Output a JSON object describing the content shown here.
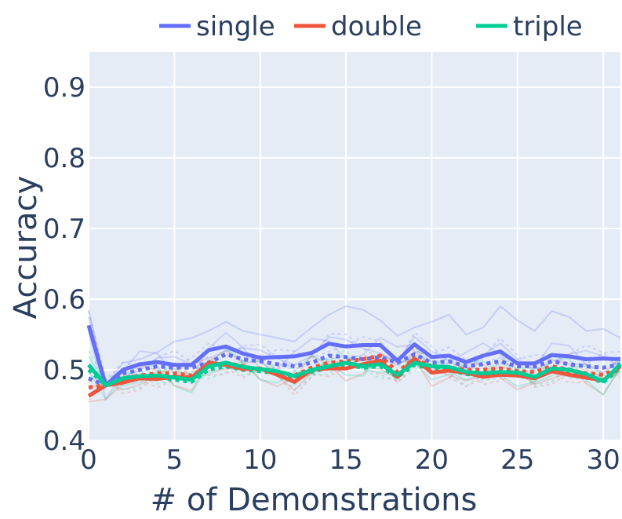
{
  "chart_data": {
    "type": "line",
    "xlabel": "# of Demonstrations",
    "ylabel": "Accuracy",
    "xlim": [
      0,
      31
    ],
    "ylim": [
      0.4,
      0.95
    ],
    "xticks": [
      0,
      5,
      10,
      15,
      20,
      25,
      30
    ],
    "yticks": [
      0.4,
      0.5,
      0.6,
      0.7,
      0.8,
      0.9
    ],
    "grid": true,
    "legend_position": "top",
    "background_color": "#e5ecf6",
    "x": [
      0,
      1,
      2,
      3,
      4,
      5,
      6,
      7,
      8,
      9,
      10,
      11,
      12,
      13,
      14,
      15,
      16,
      17,
      18,
      19,
      20,
      21,
      22,
      23,
      24,
      25,
      26,
      27,
      28,
      29,
      30,
      31
    ],
    "series": [
      {
        "name": "single",
        "color": "#636efa",
        "mean": [
          0.563,
          0.478,
          0.5,
          0.508,
          0.511,
          0.507,
          0.507,
          0.528,
          0.533,
          0.523,
          0.517,
          0.518,
          0.519,
          0.524,
          0.537,
          0.533,
          0.535,
          0.535,
          0.513,
          0.536,
          0.518,
          0.52,
          0.511,
          0.52,
          0.526,
          0.509,
          0.509,
          0.521,
          0.519,
          0.515,
          0.516,
          0.515
        ],
        "mean_dotted": [
          0.488,
          0.478,
          0.495,
          0.5,
          0.505,
          0.503,
          0.503,
          0.51,
          0.522,
          0.515,
          0.512,
          0.508,
          0.505,
          0.51,
          0.52,
          0.518,
          0.515,
          0.518,
          0.51,
          0.522,
          0.51,
          0.512,
          0.505,
          0.508,
          0.512,
          0.505,
          0.505,
          0.512,
          0.508,
          0.505,
          0.503,
          0.508
        ],
        "upper": [
          0.585,
          0.478,
          0.51,
          0.515,
          0.525,
          0.54,
          0.545,
          0.555,
          0.568,
          0.555,
          0.55,
          0.545,
          0.54,
          0.56,
          0.578,
          0.59,
          0.585,
          0.57,
          0.548,
          0.56,
          0.568,
          0.578,
          0.55,
          0.56,
          0.59,
          0.57,
          0.555,
          0.583,
          0.575,
          0.555,
          0.558,
          0.545
        ]
      },
      {
        "name": "double",
        "color": "#ef553b",
        "mean": [
          0.463,
          0.478,
          0.482,
          0.488,
          0.487,
          0.49,
          0.489,
          0.51,
          0.507,
          0.501,
          0.502,
          0.493,
          0.483,
          0.5,
          0.502,
          0.502,
          0.508,
          0.513,
          0.49,
          0.516,
          0.496,
          0.499,
          0.496,
          0.49,
          0.493,
          0.492,
          0.488,
          0.498,
          0.493,
          0.489,
          0.485,
          0.505
        ],
        "mean_dotted": [
          0.475,
          0.478,
          0.488,
          0.492,
          0.495,
          0.495,
          0.492,
          0.505,
          0.51,
          0.505,
          0.5,
          0.497,
          0.492,
          0.503,
          0.51,
          0.512,
          0.515,
          0.52,
          0.497,
          0.515,
          0.505,
          0.503,
          0.5,
          0.5,
          0.502,
          0.498,
          0.497,
          0.505,
          0.5,
          0.495,
          0.493,
          0.503
        ]
      },
      {
        "name": "triple",
        "color": "#00cc96",
        "mean": [
          0.507,
          0.478,
          0.488,
          0.491,
          0.492,
          0.489,
          0.486,
          0.505,
          0.51,
          0.504,
          0.501,
          0.498,
          0.491,
          0.5,
          0.505,
          0.51,
          0.505,
          0.508,
          0.493,
          0.51,
          0.505,
          0.504,
          0.497,
          0.495,
          0.497,
          0.496,
          0.49,
          0.502,
          0.5,
          0.494,
          0.484,
          0.508
        ],
        "mean_dotted": [
          0.5,
          0.478,
          0.485,
          0.49,
          0.49,
          0.486,
          0.483,
          0.5,
          0.505,
          0.5,
          0.498,
          0.495,
          0.488,
          0.497,
          0.503,
          0.507,
          0.503,
          0.505,
          0.49,
          0.507,
          0.502,
          0.5,
          0.494,
          0.492,
          0.494,
          0.493,
          0.488,
          0.498,
          0.497,
          0.491,
          0.482,
          0.503
        ]
      }
    ]
  }
}
